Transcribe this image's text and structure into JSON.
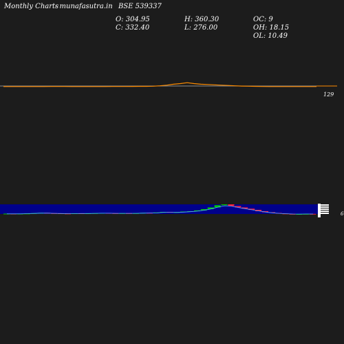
{
  "header": {
    "site_label": "Monthly Charts",
    "site_name": "- munafasutra.in",
    "symbol": "BSE 539337"
  },
  "ohlc": {
    "open": "O: 304.95",
    "close": "C: 332.40",
    "high": "H: 360.30",
    "low": "L: 276.00",
    "oc": "OC: 9",
    "oh": "OH: 18.15",
    "ol": "OL: 10.49"
  },
  "chart_data": {
    "type": "candlestick",
    "price_axis_label": "129",
    "volume_axis_label": "6",
    "price_line": [
      0.2,
      0.2,
      0.2,
      0.2,
      0.2,
      0.2,
      0.2,
      0.3,
      0.3,
      0.3,
      0.2,
      0.2,
      0.2,
      0.2,
      0.2,
      0.2,
      0.3,
      0.3,
      0.3,
      0.4,
      0.5,
      0.6,
      0.8,
      1.5,
      2.5,
      4,
      5,
      6.5,
      5,
      4,
      3.5,
      3,
      2.5,
      2,
      1.5,
      1,
      0.8,
      0.5,
      0.3,
      0.2,
      0.2,
      0.2,
      0.2,
      0.2,
      0.2,
      0.2,
      0.2
    ],
    "candles": [
      {
        "o": 0.5,
        "c": 0.6
      },
      {
        "o": 0.6,
        "c": 0.5
      },
      {
        "o": 0.5,
        "c": 0.6
      },
      {
        "o": 0.6,
        "c": 0.7
      },
      {
        "o": 0.7,
        "c": 0.9
      },
      {
        "o": 0.9,
        "c": 1.1
      },
      {
        "o": 1.1,
        "c": 0.9
      },
      {
        "o": 0.9,
        "c": 0.8
      },
      {
        "o": 0.8,
        "c": 0.7
      },
      {
        "o": 0.7,
        "c": 0.6
      },
      {
        "o": 0.6,
        "c": 0.8
      },
      {
        "o": 0.8,
        "c": 0.7
      },
      {
        "o": 0.7,
        "c": 0.8
      },
      {
        "o": 0.8,
        "c": 0.9
      },
      {
        "o": 0.9,
        "c": 1.0
      },
      {
        "o": 1.0,
        "c": 0.9
      },
      {
        "o": 0.9,
        "c": 0.8
      },
      {
        "o": 0.8,
        "c": 0.9
      },
      {
        "o": 0.9,
        "c": 0.8
      },
      {
        "o": 0.8,
        "c": 0.9
      },
      {
        "o": 0.9,
        "c": 1.1
      },
      {
        "o": 1.1,
        "c": 1.0
      },
      {
        "o": 1.0,
        "c": 1.3
      },
      {
        "o": 1.3,
        "c": 1.6
      },
      {
        "o": 1.6,
        "c": 1.4
      },
      {
        "o": 1.4,
        "c": 1.5
      },
      {
        "o": 1.5,
        "c": 1.8
      },
      {
        "o": 1.8,
        "c": 2.0
      },
      {
        "o": 2.0,
        "c": 2.5
      },
      {
        "o": 2.5,
        "c": 3.2
      },
      {
        "o": 3.2,
        "c": 4.2
      },
      {
        "o": 4.2,
        "c": 5.5
      },
      {
        "o": 5.5,
        "c": 6.0
      },
      {
        "o": 6.0,
        "c": 5.0
      },
      {
        "o": 5.0,
        "c": 4.2
      },
      {
        "o": 4.2,
        "c": 3.5
      },
      {
        "o": 3.5,
        "c": 2.8
      },
      {
        "o": 2.8,
        "c": 2.0
      },
      {
        "o": 2.0,
        "c": 1.4
      },
      {
        "o": 1.4,
        "c": 1.0
      },
      {
        "o": 1.0,
        "c": 0.7
      },
      {
        "o": 0.7,
        "c": 0.5
      },
      {
        "o": 0.5,
        "c": 0.4
      },
      {
        "o": 0.4,
        "c": 0.4
      },
      {
        "o": 0.4,
        "c": 0.5
      },
      {
        "o": 0.5,
        "c": 0.4
      }
    ]
  },
  "colors": {
    "background": "#1c1c1c",
    "volume_band": "#00008b",
    "price_line": "#ff8c00",
    "up_candle": "#00c800",
    "down_candle": "#ff1e3c",
    "ma_line": "#55aaff"
  }
}
